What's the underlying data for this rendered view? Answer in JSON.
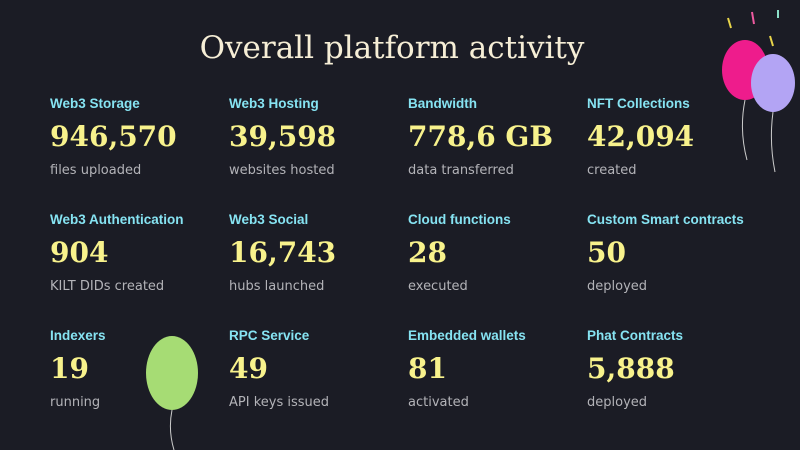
{
  "header": {
    "title": "Overall platform activity"
  },
  "stats": [
    {
      "label": "Web3 Storage",
      "value": "946,570",
      "caption": "files uploaded"
    },
    {
      "label": "Web3 Hosting",
      "value": "39,598",
      "caption": "websites hosted"
    },
    {
      "label": "Bandwidth",
      "value": "778,6 GB",
      "caption": "data transferred"
    },
    {
      "label": "NFT Collections",
      "value": "42,094",
      "caption": "created"
    },
    {
      "label": "Web3 Authentication",
      "value": "904",
      "caption": "KILT DIDs created"
    },
    {
      "label": "Web3 Social",
      "value": "16,743",
      "caption": "hubs launched"
    },
    {
      "label": "Cloud functions",
      "value": "28",
      "caption": "executed"
    },
    {
      "label": "Custom Smart contracts",
      "value": "50",
      "caption": "deployed"
    },
    {
      "label": "Indexers",
      "value": "19",
      "caption": "running"
    },
    {
      "label": "RPC Service",
      "value": "49",
      "caption": "API keys issued"
    },
    {
      "label": "Embedded wallets",
      "value": "81",
      "caption": "activated"
    },
    {
      "label": "Phat Contracts",
      "value": "5,888",
      "caption": "deployed"
    }
  ]
}
